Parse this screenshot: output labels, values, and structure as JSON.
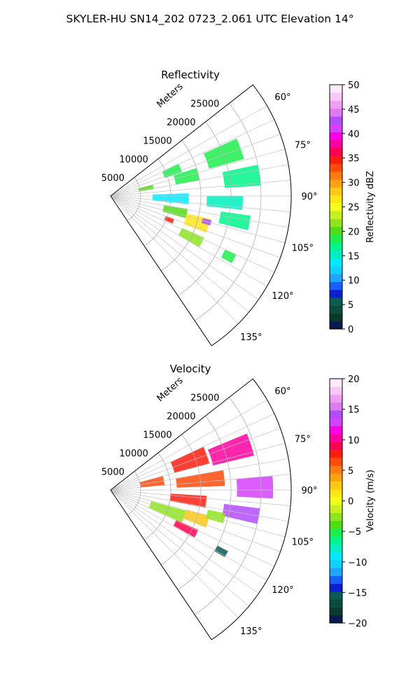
{
  "title": "SKYLER-HU  SN14_202  0723_2.061 UTC Elevation 14°",
  "chart_data": [
    {
      "type": "heatmap",
      "projection": "polar-sector",
      "title": "Reflectivity",
      "range_label": "Meters",
      "range_ticks": [
        5000,
        10000,
        15000,
        20000,
        25000
      ],
      "range_max": 30000,
      "azimuth_range_deg": [
        52,
        146
      ],
      "azimuth_ticks": [
        "60°",
        "75°",
        "90°",
        "105°",
        "120°",
        "135°"
      ],
      "colorbar": {
        "label": "Reflectivity dBZ",
        "ticks": [
          "0",
          "5",
          "10",
          "15",
          "20",
          "25",
          "30",
          "35",
          "40",
          "45",
          "50"
        ],
        "min": 0,
        "max": 50,
        "colors": [
          "#0b1a4e",
          "#0a3a2e",
          "#0b4d3c",
          "#0b5d52",
          "#0e1fd2",
          "#1560ff",
          "#1fa4ff",
          "#10d0ff",
          "#00eaff",
          "#00f0c0",
          "#00f68a",
          "#1cef4c",
          "#4fdc15",
          "#8ee51c",
          "#c6f11e",
          "#f2ff16",
          "#ffe614",
          "#ffc812",
          "#ffa20f",
          "#ff7a0c",
          "#ff4a0b",
          "#ff1d0f",
          "#ff0050",
          "#ff00a0",
          "#ff00e8",
          "#d640ff",
          "#b24cff",
          "#e07af0",
          "#f09ef2",
          "#f8c8f6",
          "#fde8fb"
        ]
      },
      "cells": [
        {
          "r": 6000,
          "az": 78,
          "dr": 2500,
          "daz": 6,
          "v": 20
        },
        {
          "r": 11000,
          "az": 68,
          "dr": 3000,
          "daz": 7,
          "v": 19
        },
        {
          "r": 13000,
          "az": 76,
          "dr": 4000,
          "daz": 8,
          "v": 18
        },
        {
          "r": 20000,
          "az": 70,
          "dr": 6000,
          "daz": 9,
          "v": 18
        },
        {
          "r": 22000,
          "az": 82,
          "dr": 6000,
          "daz": 8,
          "v": 17
        },
        {
          "r": 10000,
          "az": 92,
          "dr": 6000,
          "daz": 8,
          "v": 14
        },
        {
          "r": 19000,
          "az": 93,
          "dr": 6000,
          "daz": 6,
          "v": 15
        },
        {
          "r": 21000,
          "az": 101,
          "dr": 5000,
          "daz": 6,
          "v": 17
        },
        {
          "r": 11000,
          "az": 103,
          "dr": 4000,
          "daz": 7,
          "v": 20
        },
        {
          "r": 15000,
          "az": 107,
          "dr": 4000,
          "daz": 8,
          "v": 26
        },
        {
          "r": 16500,
          "az": 105,
          "dr": 1500,
          "daz": 3,
          "v": 42
        },
        {
          "r": 10500,
          "az": 112,
          "dr": 1500,
          "daz": 4,
          "v": 35
        },
        {
          "r": 15000,
          "az": 117,
          "dr": 4000,
          "daz": 6,
          "v": 21
        },
        {
          "r": 22000,
          "az": 117,
          "dr": 2000,
          "daz": 4,
          "v": 18
        }
      ]
    },
    {
      "type": "heatmap",
      "projection": "polar-sector",
      "title": "Velocity",
      "range_label": "Meters",
      "range_ticks": [
        5000,
        10000,
        15000,
        20000,
        25000
      ],
      "range_max": 30000,
      "azimuth_range_deg": [
        52,
        146
      ],
      "azimuth_ticks": [
        "60°",
        "75°",
        "90°",
        "105°",
        "120°",
        "135°"
      ],
      "colorbar": {
        "label": "Velocity (m/s)",
        "ticks": [
          "−20",
          "−15",
          "−10",
          "−5",
          "0",
          "5",
          "10",
          "15",
          "20"
        ],
        "min": -20,
        "max": 20,
        "colors": [
          "#0b1a4e",
          "#0a3a2e",
          "#0b4d3c",
          "#0b5d52",
          "#0e1fd2",
          "#1560ff",
          "#1fa4ff",
          "#10d0ff",
          "#00eaff",
          "#00f0c0",
          "#00f68a",
          "#1cef4c",
          "#4fdc15",
          "#8ee51c",
          "#c6f11e",
          "#f2ff16",
          "#ffe614",
          "#ffc812",
          "#ffa20f",
          "#ff7a0c",
          "#ff4a0b",
          "#ff1d0f",
          "#ff0050",
          "#ff00a0",
          "#ff00e8",
          "#d640ff",
          "#b24cff",
          "#e07af0",
          "#f09ef2",
          "#f8c8f6",
          "#fde8fb"
        ]
      },
      "cells": [
        {
          "r": 7000,
          "az": 80,
          "dr": 4000,
          "daz": 10,
          "v": 7
        },
        {
          "r": 14000,
          "az": 70,
          "dr": 6000,
          "daz": 10,
          "v": 8
        },
        {
          "r": 21000,
          "az": 72,
          "dr": 7000,
          "daz": 9,
          "v": 10
        },
        {
          "r": 15000,
          "az": 84,
          "dr": 8000,
          "daz": 8,
          "v": 7
        },
        {
          "r": 24000,
          "az": 89,
          "dr": 6000,
          "daz": 8,
          "v": 13
        },
        {
          "r": 22000,
          "az": 100,
          "dr": 6000,
          "daz": 6,
          "v": 14
        },
        {
          "r": 13000,
          "az": 97,
          "dr": 6000,
          "daz": 7,
          "v": 8
        },
        {
          "r": 10000,
          "az": 110,
          "dr": 6000,
          "daz": 9,
          "v": -2
        },
        {
          "r": 15000,
          "az": 108,
          "dr": 4000,
          "daz": 7,
          "v": 3
        },
        {
          "r": 18000,
          "az": 104,
          "dr": 3000,
          "daz": 5,
          "v": -3
        },
        {
          "r": 14000,
          "az": 117,
          "dr": 4000,
          "daz": 5,
          "v": 9
        },
        {
          "r": 21000,
          "az": 119,
          "dr": 2000,
          "daz": 3,
          "v": -16
        }
      ]
    }
  ]
}
